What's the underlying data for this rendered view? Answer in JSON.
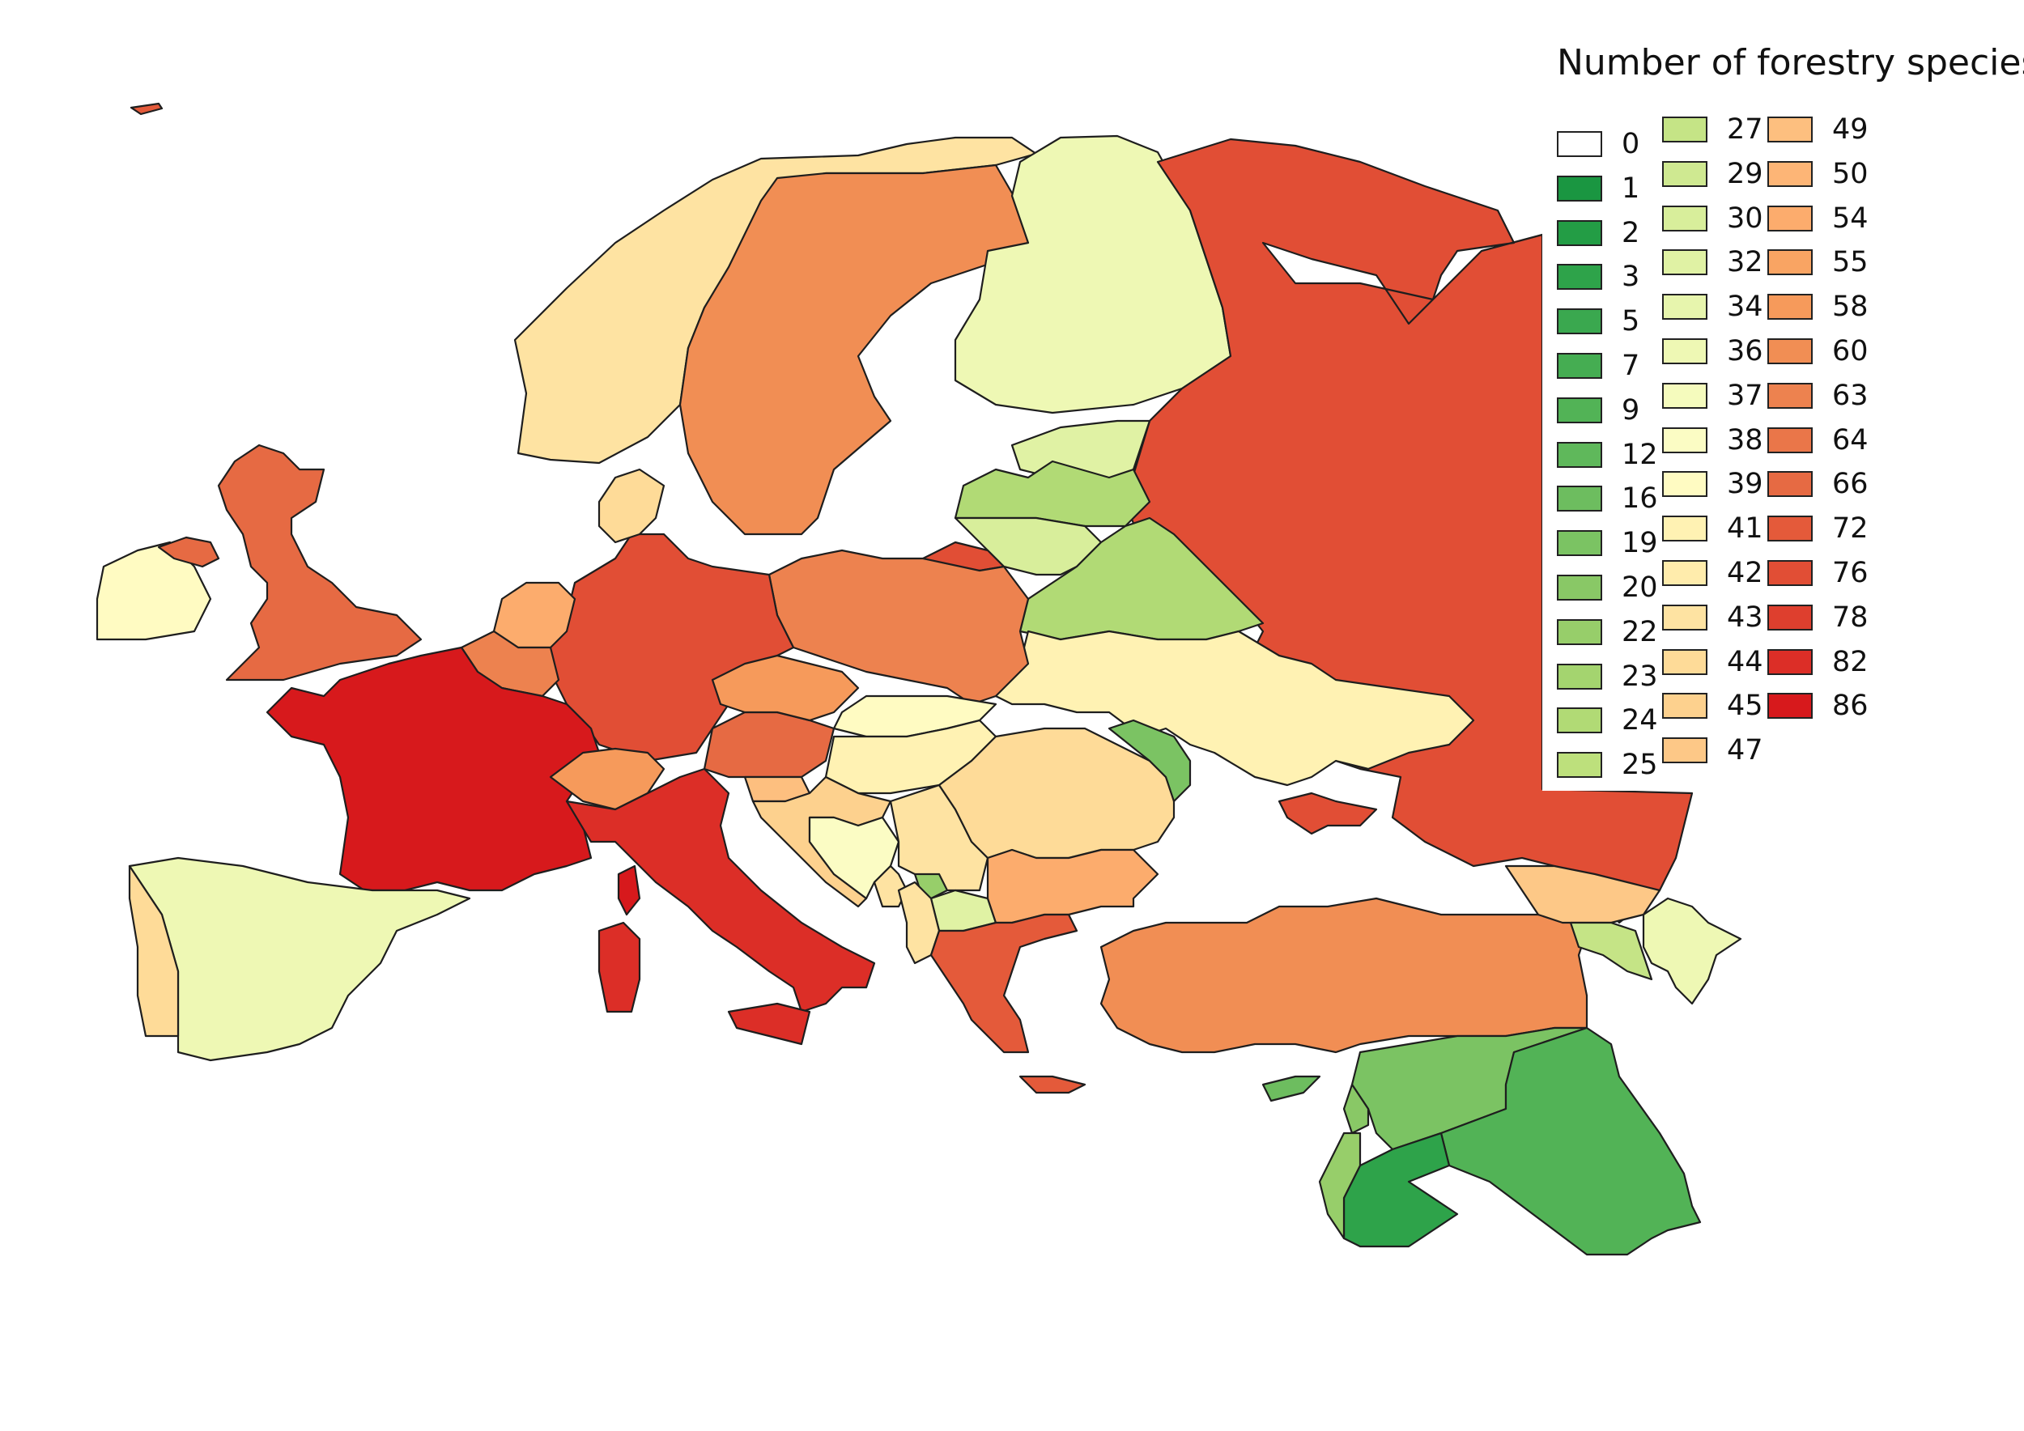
{
  "legend": {
    "title": "Number of forestry species",
    "bins": [
      {
        "label": "0",
        "color": "#ffffff"
      },
      {
        "label": "1",
        "color": "#1a9641"
      },
      {
        "label": "2",
        "color": "#239d45"
      },
      {
        "label": "3",
        "color": "#2ea34a"
      },
      {
        "label": "5",
        "color": "#3aa84f"
      },
      {
        "label": "7",
        "color": "#45ad52"
      },
      {
        "label": "9",
        "color": "#52b356"
      },
      {
        "label": "12",
        "color": "#5fb85b"
      },
      {
        "label": "16",
        "color": "#6dbd5f"
      },
      {
        "label": "19",
        "color": "#7bc363"
      },
      {
        "label": "20",
        "color": "#89c866"
      },
      {
        "label": "22",
        "color": "#97ce6a"
      },
      {
        "label": "23",
        "color": "#a4d46f"
      },
      {
        "label": "24",
        "color": "#b1da75"
      },
      {
        "label": "25",
        "color": "#bde07c"
      },
      {
        "label": "27",
        "color": "#c5e486"
      },
      {
        "label": "29",
        "color": "#cfe991"
      },
      {
        "label": "30",
        "color": "#d8ee9b"
      },
      {
        "label": "32",
        "color": "#e0f2a4"
      },
      {
        "label": "34",
        "color": "#e7f5ad"
      },
      {
        "label": "36",
        "color": "#eef8b4"
      },
      {
        "label": "37",
        "color": "#f5fbbd"
      },
      {
        "label": "38",
        "color": "#fbfcc4"
      },
      {
        "label": "39",
        "color": "#fffbc2"
      },
      {
        "label": "41",
        "color": "#fff2b3"
      },
      {
        "label": "42",
        "color": "#ffecac"
      },
      {
        "label": "43",
        "color": "#fee3a2"
      },
      {
        "label": "44",
        "color": "#fedb98"
      },
      {
        "label": "45",
        "color": "#fdd18e"
      },
      {
        "label": "47",
        "color": "#fdc887"
      },
      {
        "label": "49",
        "color": "#fdbf7f"
      },
      {
        "label": "50",
        "color": "#fdb576"
      },
      {
        "label": "54",
        "color": "#fcac6d"
      },
      {
        "label": "55",
        "color": "#f9a463"
      },
      {
        "label": "58",
        "color": "#f69a5b"
      },
      {
        "label": "60",
        "color": "#f18e54"
      },
      {
        "label": "63",
        "color": "#ed824f"
      },
      {
        "label": "64",
        "color": "#ea7649"
      },
      {
        "label": "66",
        "color": "#e66a43"
      },
      {
        "label": "72",
        "color": "#e45a3a"
      },
      {
        "label": "76",
        "color": "#e14e35"
      },
      {
        "label": "78",
        "color": "#de3f2e"
      },
      {
        "label": "82",
        "color": "#dc2e27"
      },
      {
        "label": "86",
        "color": "#d7191c"
      }
    ]
  },
  "regions": [
    {
      "name": "iceland",
      "color": "#e45a3a"
    },
    {
      "name": "norway",
      "color": "#fee3a2"
    },
    {
      "name": "sweden",
      "color": "#f18e54"
    },
    {
      "name": "finland",
      "color": "#eef8b4"
    },
    {
      "name": "russia",
      "color": "#e14e35"
    },
    {
      "name": "estonia",
      "color": "#e0f2a4"
    },
    {
      "name": "latvia",
      "color": "#b1da75"
    },
    {
      "name": "lithuania",
      "color": "#d8ee9b"
    },
    {
      "name": "belarus",
      "color": "#b1da75"
    },
    {
      "name": "kaliningrad",
      "color": "#e14e35"
    },
    {
      "name": "ukraine",
      "color": "#fff2b3"
    },
    {
      "name": "poland",
      "color": "#ed824f"
    },
    {
      "name": "germany",
      "color": "#e14e35"
    },
    {
      "name": "denmark",
      "color": "#fedb98"
    },
    {
      "name": "netherlands",
      "color": "#fcac6d"
    },
    {
      "name": "belgium",
      "color": "#ed824f"
    },
    {
      "name": "france",
      "color": "#d7191c"
    },
    {
      "name": "ireland",
      "color": "#fffbc2"
    },
    {
      "name": "northern-ireland",
      "color": "#e66a43"
    },
    {
      "name": "great-britain",
      "color": "#e66a43"
    },
    {
      "name": "spain",
      "color": "#eef8b4"
    },
    {
      "name": "portugal",
      "color": "#fedb98"
    },
    {
      "name": "switzerland",
      "color": "#f69a5b"
    },
    {
      "name": "italy",
      "color": "#dc2e27"
    },
    {
      "name": "sardinia",
      "color": "#dc2e27"
    },
    {
      "name": "corsica",
      "color": "#d7191c"
    },
    {
      "name": "sicily",
      "color": "#dc2e27"
    },
    {
      "name": "austria",
      "color": "#e66a43"
    },
    {
      "name": "czechia",
      "color": "#f69a5b"
    },
    {
      "name": "slovakia",
      "color": "#fffbc2"
    },
    {
      "name": "hungary",
      "color": "#fff2b3"
    },
    {
      "name": "slovenia",
      "color": "#fdbf7f"
    },
    {
      "name": "croatia",
      "color": "#fdd18e"
    },
    {
      "name": "bosnia",
      "color": "#fbfcc4"
    },
    {
      "name": "serbia",
      "color": "#fee3a2"
    },
    {
      "name": "montenegro",
      "color": "#fee3a2"
    },
    {
      "name": "kosovo",
      "color": "#97ce6a"
    },
    {
      "name": "north-macedonia",
      "color": "#e0f2a4"
    },
    {
      "name": "albania",
      "color": "#fee3a2"
    },
    {
      "name": "romania",
      "color": "#fedb98"
    },
    {
      "name": "moldova",
      "color": "#7bc363"
    },
    {
      "name": "bulgaria",
      "color": "#fcac6d"
    },
    {
      "name": "greece",
      "color": "#e45a3a"
    },
    {
      "name": "crete",
      "color": "#e45a3a"
    },
    {
      "name": "turkey",
      "color": "#f18e54"
    },
    {
      "name": "cyprus",
      "color": "#6dbd5f"
    },
    {
      "name": "crimea",
      "color": "#e14e35"
    },
    {
      "name": "georgia",
      "color": "#fdc887"
    },
    {
      "name": "armenia",
      "color": "#c5e486"
    },
    {
      "name": "azerbaijan",
      "color": "#eef8b4"
    },
    {
      "name": "syria",
      "color": "#7bc363"
    },
    {
      "name": "iraq",
      "color": "#52b356"
    },
    {
      "name": "jordan",
      "color": "#2ea34a"
    },
    {
      "name": "lebanon",
      "color": "#89c866"
    },
    {
      "name": "israel",
      "color": "#97ce6a"
    }
  ]
}
